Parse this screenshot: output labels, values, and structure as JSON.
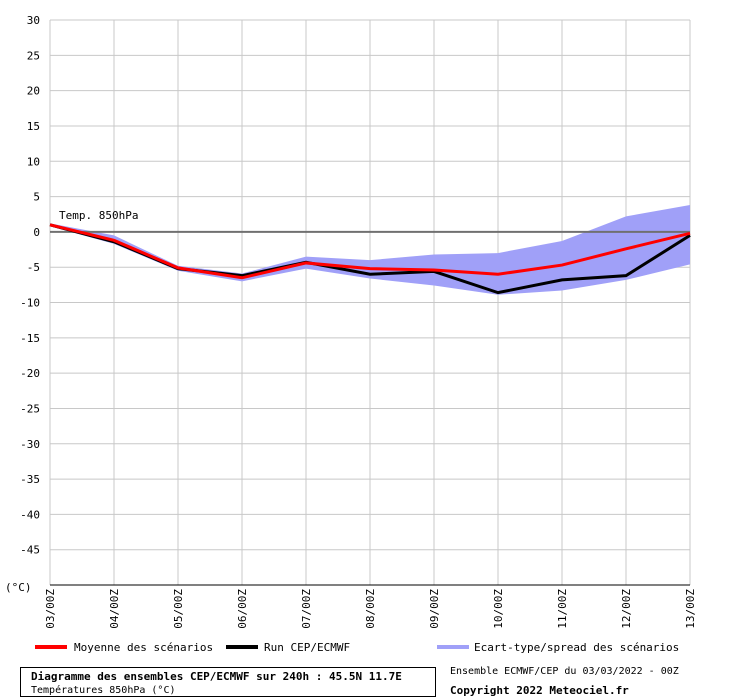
{
  "chart_data": {
    "type": "line",
    "x": [
      "03/00Z",
      "04/00Z",
      "05/00Z",
      "06/00Z",
      "07/00Z",
      "08/00Z",
      "09/00Z",
      "10/00Z",
      "11/00Z",
      "12/00Z",
      "13/00Z"
    ],
    "y_ticks": [
      "30",
      "25",
      "20",
      "15",
      "10",
      "5",
      "0",
      "-5",
      "-10",
      "-15",
      "-20",
      "-25",
      "-30",
      "-35",
      "-40",
      "-45"
    ],
    "ylim": [
      -50,
      30
    ],
    "yunit": "(°C)",
    "annotation": "Temp. 850hPa",
    "series": [
      {
        "name": "Moyenne des scénarios",
        "color": "#ff0000",
        "values": [
          1.0,
          -1.2,
          -5.1,
          -6.5,
          -4.4,
          -5.2,
          -5.4,
          -6.0,
          -4.7,
          -2.4,
          -0.2
        ]
      },
      {
        "name": "Run CEP/ECMWF",
        "color": "#000000",
        "values": [
          1.0,
          -1.4,
          -5.2,
          -6.2,
          -4.3,
          -6.0,
          -5.6,
          -8.6,
          -6.8,
          -6.2,
          -0.5
        ]
      }
    ],
    "spread": {
      "name": "Ecart-type/spread des scénarios",
      "color": "#a0a0f8",
      "upper": [
        1.2,
        -0.5,
        -4.8,
        -5.9,
        -3.5,
        -4.0,
        -3.2,
        -3.0,
        -1.3,
        2.2,
        3.8
      ],
      "lower": [
        0.8,
        -1.7,
        -5.5,
        -7.0,
        -5.2,
        -6.6,
        -7.6,
        -8.9,
        -8.3,
        -6.8,
        -4.6
      ]
    },
    "grid": true
  },
  "footer": {
    "title": "Diagramme des ensembles CEP/ECMWF sur 240h : 45.5N 11.7E",
    "subtitle": "Températures 850hPa (°C)",
    "run_info": "Ensemble ECMWF/CEP du 03/03/2022 - 00Z",
    "copyright": "Copyright 2022 Meteociel.fr"
  }
}
